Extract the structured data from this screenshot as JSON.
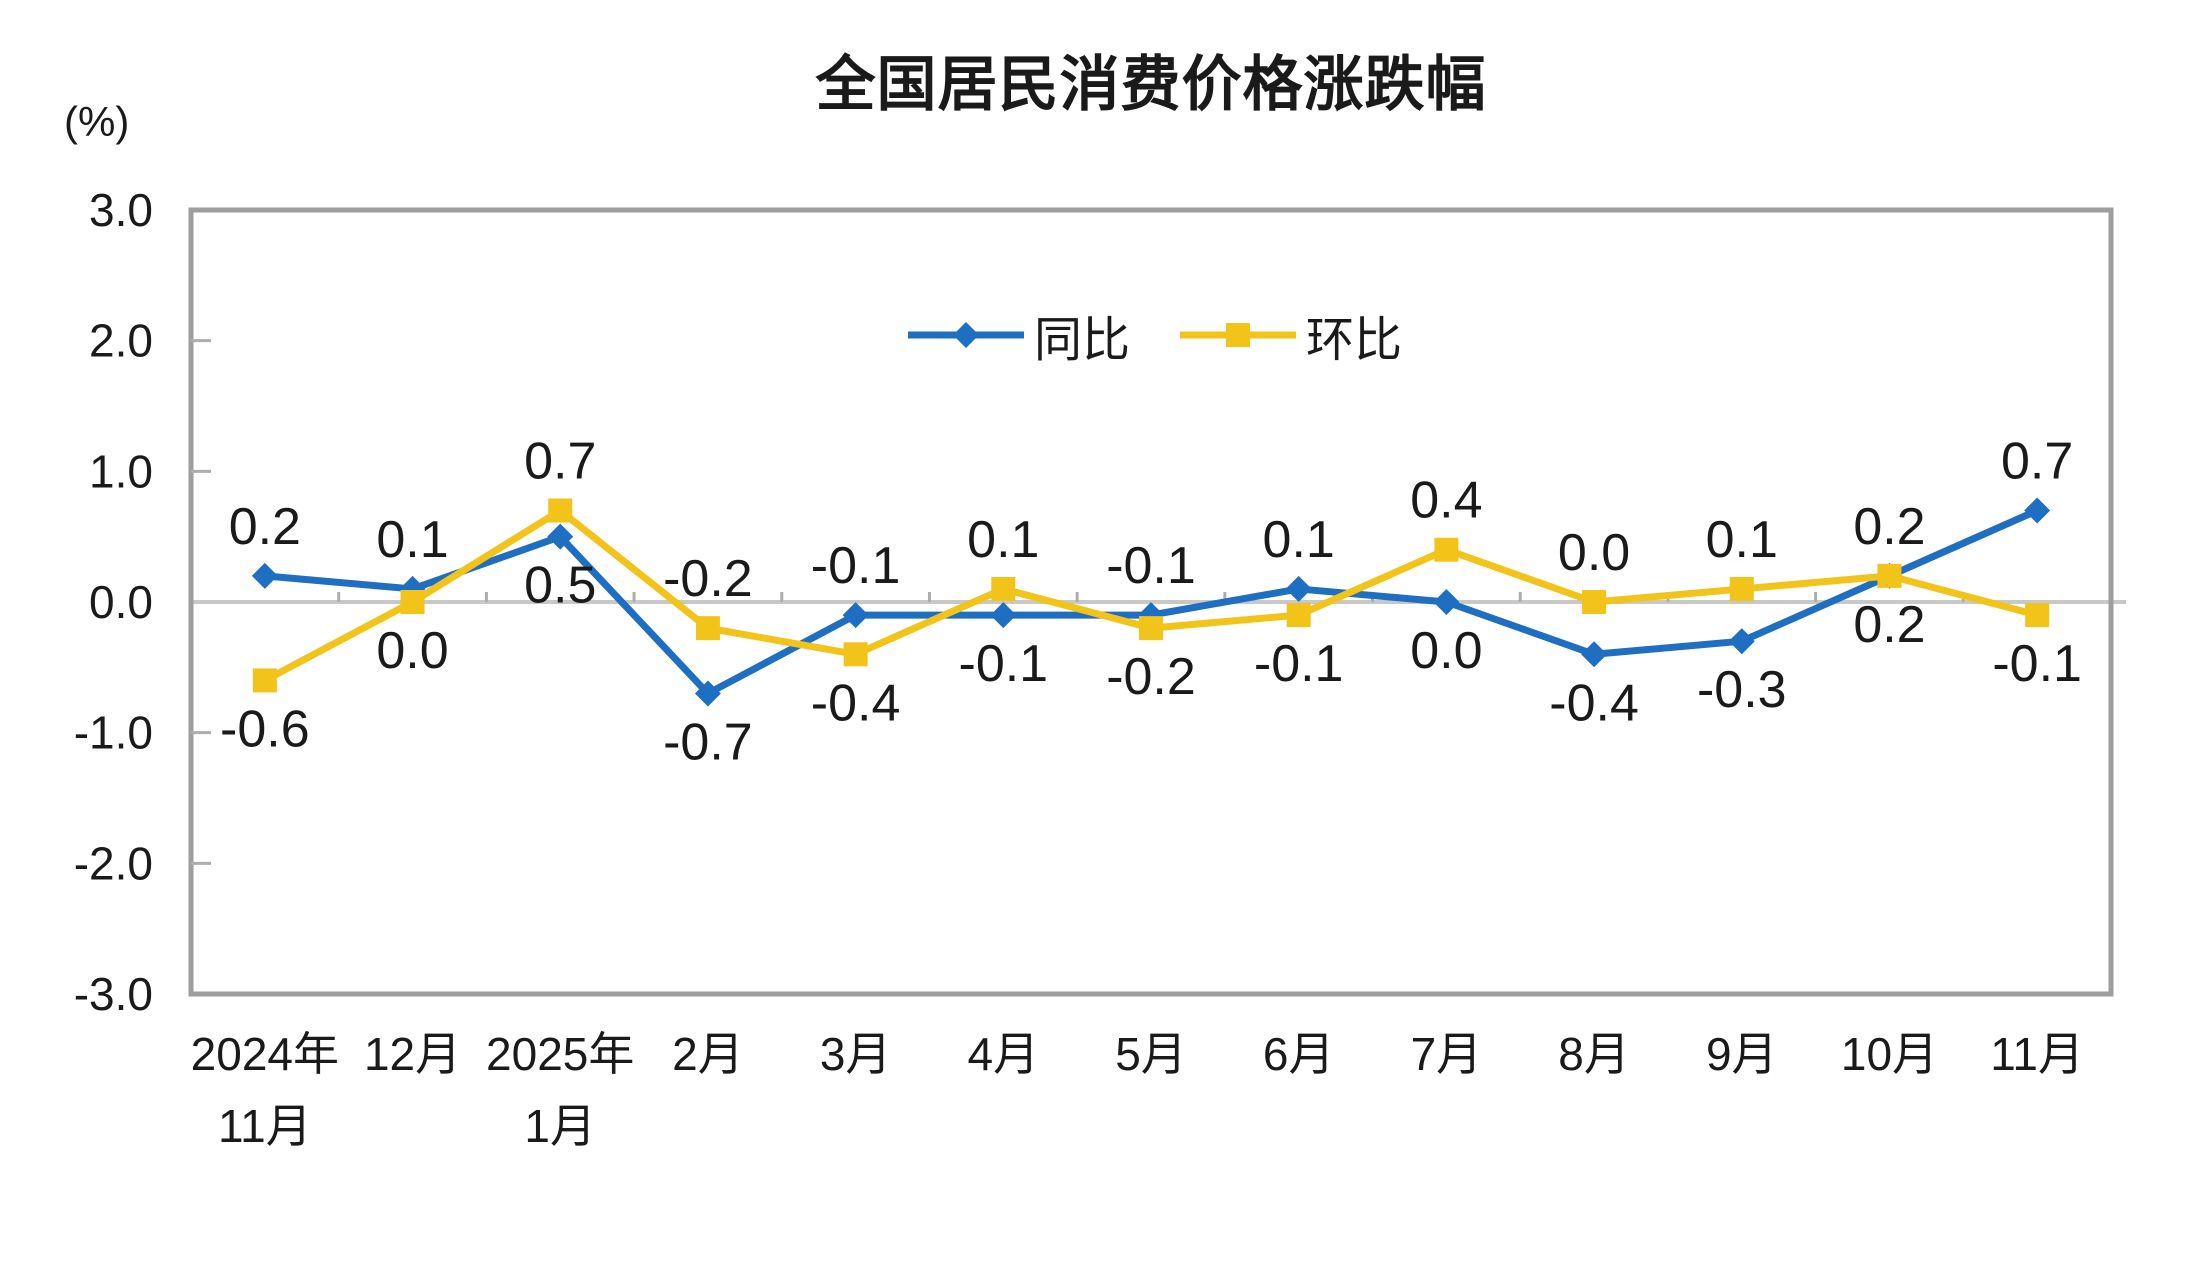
{
  "chart_data": {
    "type": "line",
    "title": "全国居民消费价格涨跌幅",
    "unit_label": "(%)",
    "categories": [
      [
        "2024年",
        "11月"
      ],
      [
        "12月"
      ],
      [
        "2025年",
        "1月"
      ],
      [
        "2月"
      ],
      [
        "3月"
      ],
      [
        "4月"
      ],
      [
        "5月"
      ],
      [
        "6月"
      ],
      [
        "7月"
      ],
      [
        "8月"
      ],
      [
        "9月"
      ],
      [
        "10月"
      ],
      [
        "11月"
      ]
    ],
    "series": [
      {
        "name": "同比",
        "marker": "diamond",
        "color": "#1E6EC2",
        "values": [
          0.2,
          0.1,
          0.5,
          -0.7,
          -0.1,
          -0.1,
          -0.1,
          0.1,
          0.0,
          -0.4,
          -0.3,
          0.2,
          0.7
        ]
      },
      {
        "name": "环比",
        "marker": "square",
        "color": "#F2C318",
        "values": [
          -0.6,
          0.0,
          0.7,
          -0.2,
          -0.4,
          0.1,
          -0.2,
          -0.1,
          0.4,
          0.0,
          0.1,
          0.2,
          -0.1
        ]
      }
    ],
    "ylim": [
      -3.0,
      3.0
    ],
    "yticks": [
      3.0,
      2.0,
      1.0,
      0.0,
      -1.0,
      -2.0,
      -3.0
    ],
    "ytick_labels": [
      "3.0",
      "2.0",
      "1.0",
      "0.0",
      "-1.0",
      "-2.0",
      "-3.0"
    ],
    "grid": false,
    "legend_position": "top-center-inside",
    "axis_color": "#9E9E9E",
    "zero_line_color": "#C8C8C8",
    "tick_color": "#ADADAD",
    "label_color": "#1A1A1A"
  }
}
